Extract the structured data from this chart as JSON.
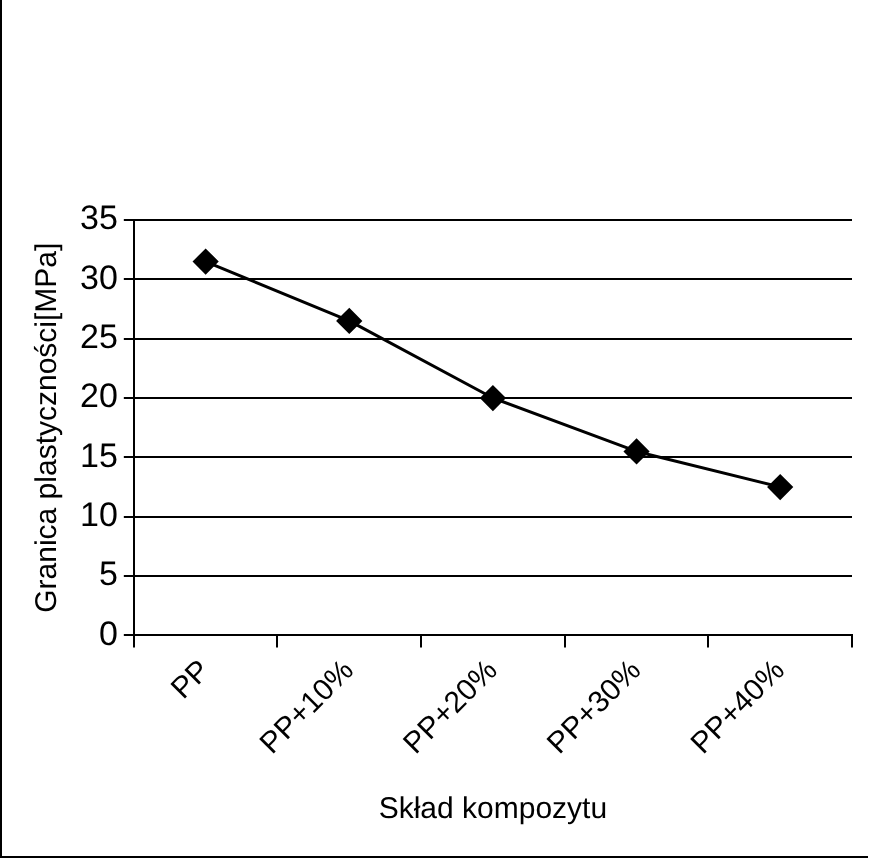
{
  "chart_data": {
    "type": "line",
    "xlabel": "Skład kompozytu",
    "ylabel": "Granica plastyczności[MPa]",
    "categories": [
      "PP",
      "PP+10%",
      "PP+20%",
      "PP+30%",
      "PP+40%"
    ],
    "series": [
      {
        "color": "#000000",
        "values": [
          31.5,
          26.5,
          20,
          15.5,
          12.5
        ]
      }
    ],
    "ylim": [
      0,
      35
    ],
    "yticks": [
      0,
      5,
      10,
      15,
      20,
      25,
      30,
      35
    ],
    "grid": "y",
    "legend": false,
    "marker": "diamond",
    "line_style": "solid"
  }
}
